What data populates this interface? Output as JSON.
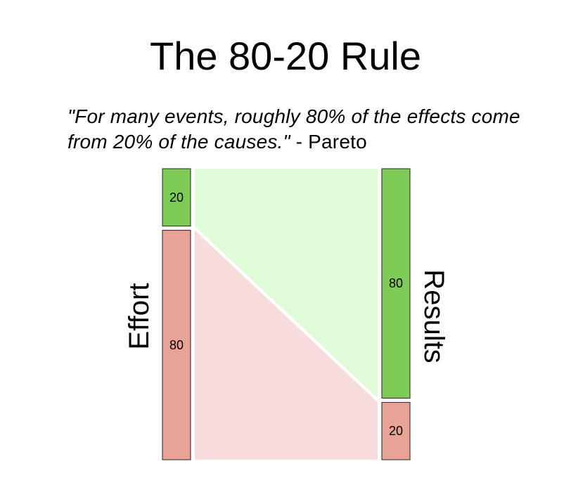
{
  "title": "The 80-20 Rule",
  "quote": {
    "text": "\"For many events, roughly 80% of the effects come from 20% of the causes.\"",
    "attribution": " - Pareto"
  },
  "left_label": "Effort",
  "right_label": "Results",
  "left_bars": [
    {
      "value": 20,
      "label": "20",
      "color": "#7ecc57"
    },
    {
      "value": 80,
      "label": "80",
      "color": "#e8a296"
    }
  ],
  "right_bars": [
    {
      "value": 80,
      "label": "80",
      "color": "#7ecc57"
    },
    {
      "value": 20,
      "label": "20",
      "color": "#e8a296"
    }
  ],
  "colors": {
    "green_flow": "#e0fbd8",
    "red_flow": "#f6dddc",
    "bar_stroke": "#222222"
  }
}
